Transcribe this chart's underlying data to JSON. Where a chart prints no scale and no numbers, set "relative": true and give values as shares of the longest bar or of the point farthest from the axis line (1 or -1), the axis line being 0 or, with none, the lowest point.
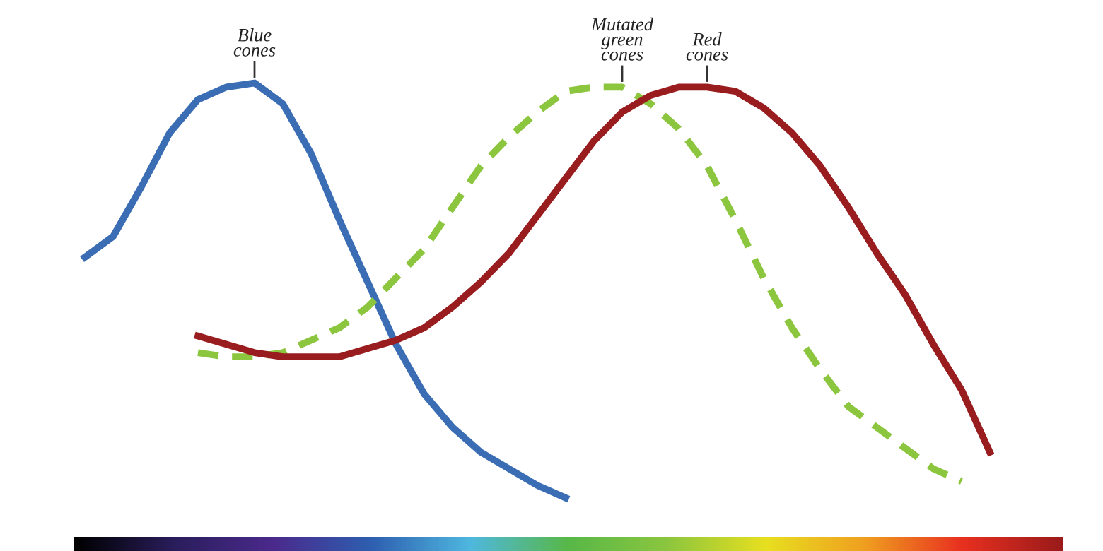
{
  "chart_data": {
    "type": "line",
    "relative": true,
    "legend": false,
    "line_style": "solid",
    "marker": "none",
    "tick_labels": false,
    "categories": [
      null,
      null,
      null,
      null,
      null,
      null,
      null,
      null,
      null,
      null,
      null,
      null,
      null,
      null,
      null,
      null,
      null,
      null,
      null,
      null,
      null,
      null,
      null,
      null,
      null,
      null,
      null,
      null,
      null,
      null,
      null,
      null,
      null
    ],
    "series": [
      {
        "name": "Blue\ncones",
        "color": "#3b6db4",
        "values": [
          0.58,
          0.63,
          0.75,
          0.88,
          0.96,
          0.99,
          1.0,
          0.95,
          0.83,
          0.67,
          0.52,
          0.37,
          0.25,
          0.17,
          0.11,
          0.07,
          0.03,
          0,
          null,
          null,
          null,
          null,
          null,
          null,
          null,
          null,
          null,
          null,
          null,
          null,
          null,
          null,
          null
        ]
      },
      {
        "name": "Mutated\ngreen\ncones",
        "color": "#8cc63f",
        "line_style": "dashed",
        "values": [
          null,
          null,
          null,
          null,
          0.35,
          0.34,
          0.34,
          0.35,
          0.38,
          0.41,
          0.46,
          0.53,
          0.6,
          0.7,
          0.8,
          0.87,
          0.93,
          0.98,
          0.99,
          0.99,
          0.95,
          0.89,
          0.8,
          0.67,
          0.53,
          0.41,
          0.31,
          0.22,
          0.17,
          0.12,
          0.07,
          0.04,
          null
        ]
      },
      {
        "name": "Red\ncones",
        "color": "#991c1f",
        "values": [
          null,
          null,
          null,
          null,
          0.39,
          0.37,
          0.35,
          0.34,
          0.34,
          0.34,
          0.36,
          0.38,
          0.41,
          0.46,
          0.52,
          0.59,
          0.68,
          0.77,
          0.86,
          0.93,
          0.97,
          0.99,
          0.99,
          0.98,
          0.94,
          0.88,
          0.8,
          0.7,
          0.59,
          0.49,
          0.37,
          0.26,
          0.11
        ]
      }
    ]
  }
}
